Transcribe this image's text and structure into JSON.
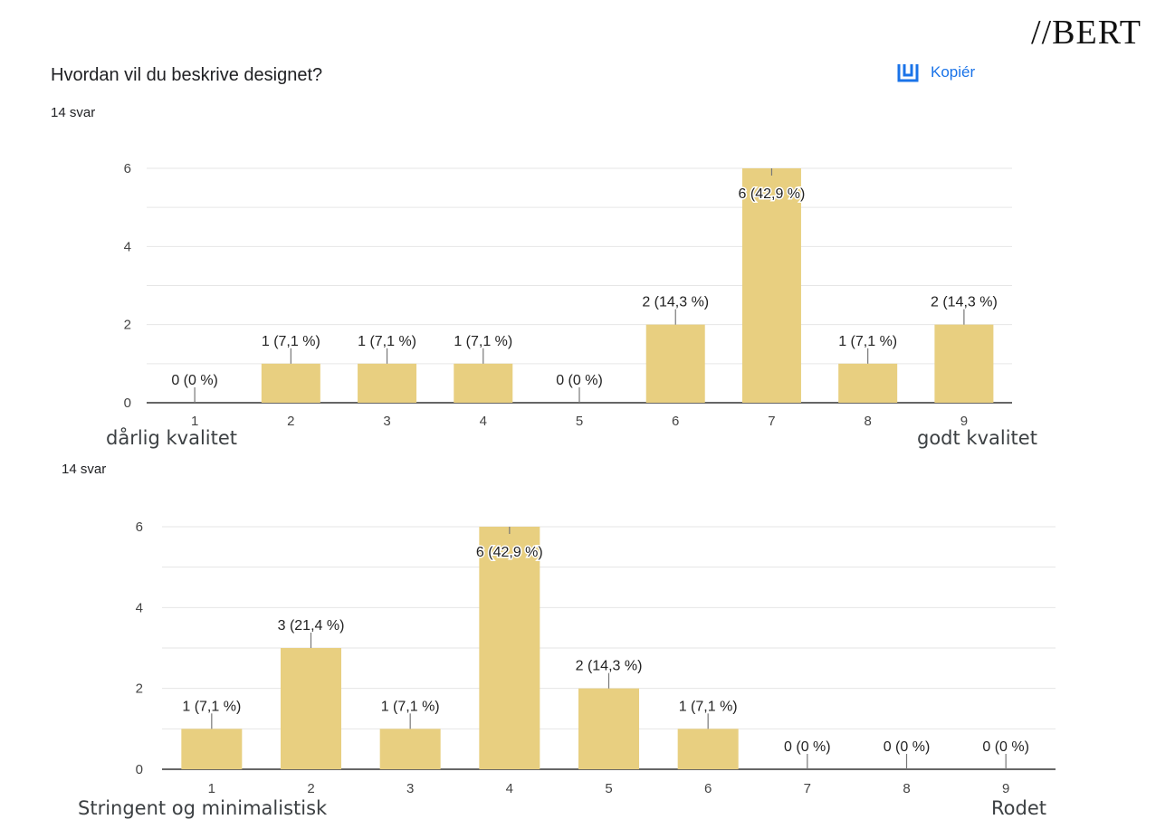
{
  "brand": "//BERT",
  "question": {
    "title": "Hvordan vil du beskrive designet?",
    "copy_label": "Kopiér",
    "copy_icon": "copy-chart-icon"
  },
  "charts_meta": [
    {
      "count_label": "14 svar",
      "left_label": "dårlig kvalitet",
      "right_label": "godt kvalitet"
    },
    {
      "count_label": "14 svar",
      "left_label": "Stringent og minimalistisk",
      "right_label": "Rodet"
    }
  ],
  "colors": {
    "bar": "#e8cf80",
    "grid": "#e6e6e6",
    "axis": "#333333",
    "accent": "#1a73e8"
  },
  "chart_data": [
    {
      "type": "bar",
      "categories": [
        "1",
        "2",
        "3",
        "4",
        "5",
        "6",
        "7",
        "8",
        "9"
      ],
      "values": [
        0,
        1,
        1,
        1,
        0,
        2,
        6,
        1,
        2
      ],
      "data_labels": [
        "0 (0 %)",
        "1 (7,1 %)",
        "1 (7,1 %)",
        "1 (7,1 %)",
        "0 (0 %)",
        "2 (14,3 %)",
        "6 (42,9 %)",
        "1 (7,1 %)",
        "2 (14,3 %)"
      ],
      "yticks": [
        0,
        2,
        4,
        6
      ],
      "ylim": [
        0,
        6
      ],
      "grid": true
    },
    {
      "type": "bar",
      "categories": [
        "1",
        "2",
        "3",
        "4",
        "5",
        "6",
        "7",
        "8",
        "9"
      ],
      "values": [
        1,
        3,
        1,
        6,
        2,
        1,
        0,
        0,
        0
      ],
      "data_labels": [
        "1 (7,1 %)",
        "3 (21,4 %)",
        "1 (7,1 %)",
        "6 (42,9 %)",
        "2 (14,3 %)",
        "1 (7,1 %)",
        "0 (0 %)",
        "0 (0 %)",
        "0 (0 %)"
      ],
      "yticks": [
        0,
        2,
        4,
        6
      ],
      "ylim": [
        0,
        6
      ],
      "grid": true
    }
  ]
}
